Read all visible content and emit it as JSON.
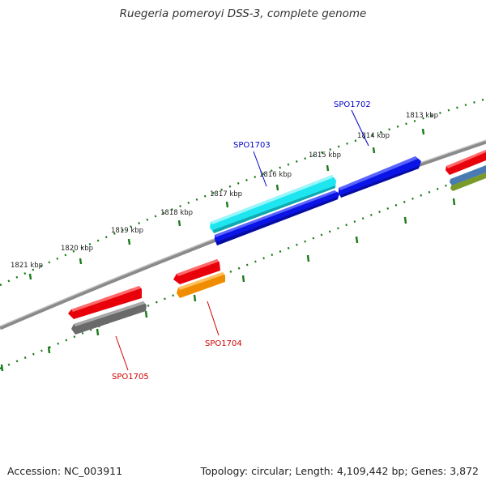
{
  "header": {
    "title": "Ruegeria pomeroyi DSS-3, complete genome"
  },
  "footer": {
    "accession": "Accession: NC_003911",
    "summary": "Topology: circular; Length: 4,109,442 bp; Genes: 3,872"
  },
  "scale": {
    "tick_labels": [
      "1821 kbp",
      "1820 kbp",
      "1819 kbp",
      "1818 kbp",
      "1817 kbp",
      "1816 kbp",
      "1815 kbp",
      "1814 kbp",
      "1813 kbp"
    ]
  },
  "genes": [
    {
      "label": "SPO1702",
      "strand": "forward"
    },
    {
      "label": "SPO1703",
      "strand": "forward"
    },
    {
      "label": "SPO1704",
      "strand": "reverse"
    },
    {
      "label": "SPO1705",
      "strand": "reverse"
    }
  ],
  "colors": {
    "backbone": "#8a8a8a",
    "tick": "#1a7a1a",
    "forward_label": "#0000c8",
    "reverse_label": "#d00000",
    "cds_red": "#e8000b",
    "cds_blue": "#0a14e6",
    "cds_cyan": "#1ee6f0",
    "cds_orange": "#f08c00",
    "cds_gray": "#6a6a6a",
    "cds_steelblue": "#4a7ab4",
    "cds_olive": "#7a9a2a"
  }
}
